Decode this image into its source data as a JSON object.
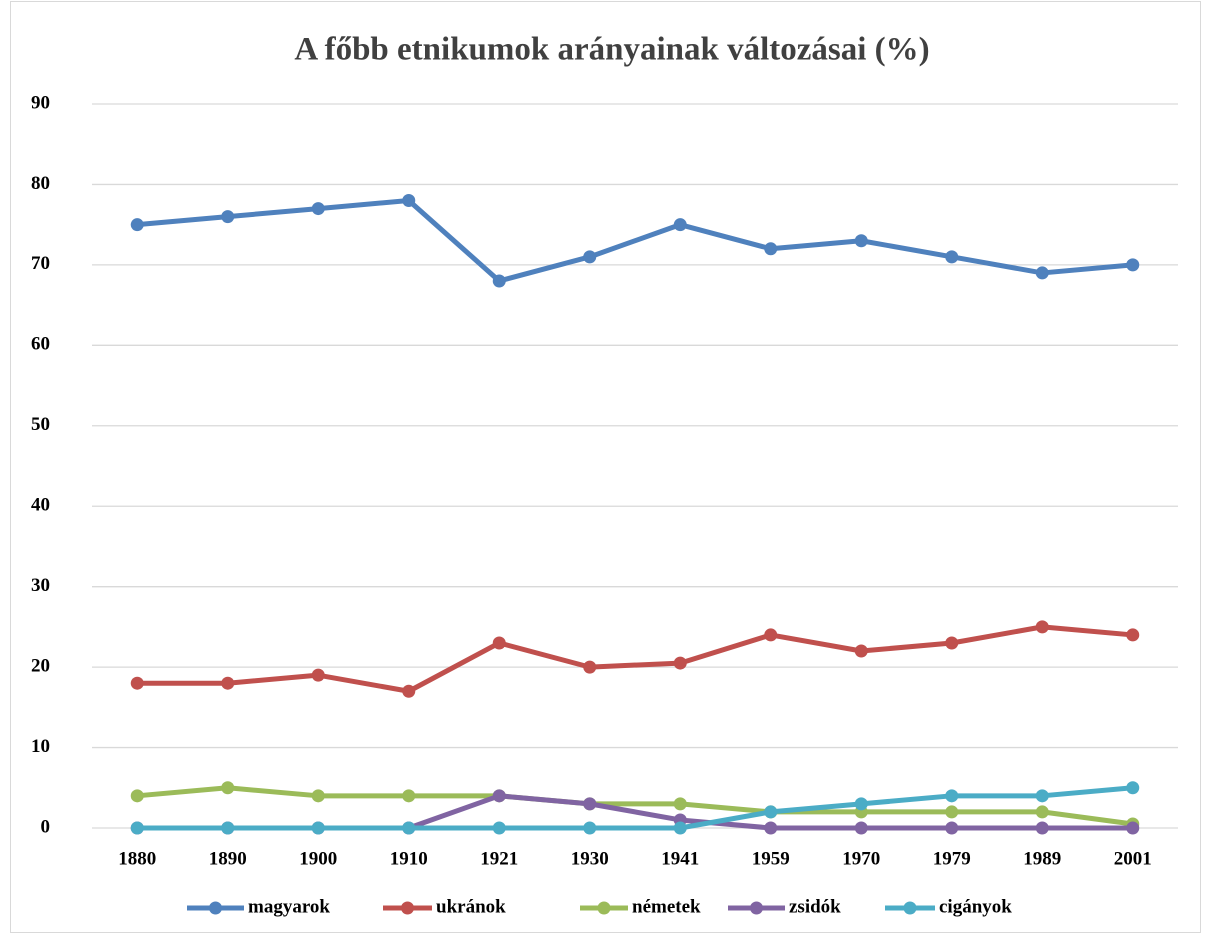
{
  "chart_data": {
    "type": "line",
    "title": "A főbb etnikumok arányainak változásai (%)",
    "categories": [
      "1880",
      "1890",
      "1900",
      "1910",
      "1921",
      "1930",
      "1941",
      "1959",
      "1970",
      "1979",
      "1989",
      "2001"
    ],
    "series": [
      {
        "name": "magyarok",
        "color": "#4f81bd",
        "values": [
          75,
          76,
          77,
          78,
          68,
          71,
          75,
          72,
          73,
          71,
          69,
          70
        ]
      },
      {
        "name": "ukránok",
        "color": "#c0504d",
        "values": [
          18,
          18,
          19,
          17,
          23,
          20,
          20.5,
          24,
          22,
          23,
          25,
          24
        ]
      },
      {
        "name": "németek",
        "color": "#9bbb59",
        "values": [
          4,
          5,
          4,
          4,
          4,
          3,
          3,
          2,
          2,
          2,
          2,
          0.5
        ]
      },
      {
        "name": "zsidók",
        "color": "#8064a2",
        "values": [
          0,
          0,
          0,
          0,
          4,
          3,
          1,
          0,
          0,
          0,
          0,
          0
        ]
      },
      {
        "name": "cigányok",
        "color": "#4bacc6",
        "values": [
          0,
          0,
          0,
          0,
          0,
          0,
          0,
          2,
          3,
          4,
          4,
          5
        ]
      }
    ],
    "ylim": [
      0,
      90
    ],
    "yticks": [
      0,
      10,
      20,
      30,
      40,
      50,
      60,
      70,
      80,
      90
    ],
    "grid": true,
    "legend": "bottom"
  }
}
